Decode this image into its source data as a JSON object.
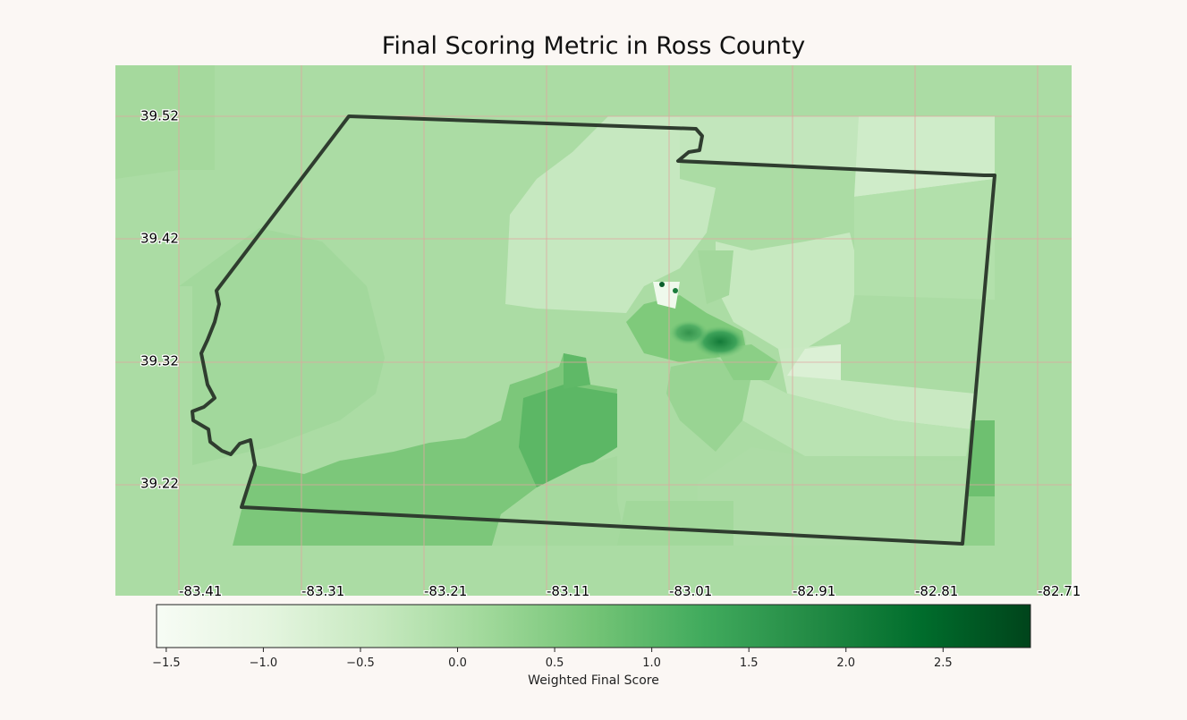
{
  "title": "Final Scoring Metric in Ross County",
  "map": {
    "lat_labels": [
      "39.52",
      "39.42",
      "39.32",
      "39.22"
    ],
    "lon_labels": [
      "-83.41",
      "-83.31",
      "-83.21",
      "-83.11",
      "-83.01",
      "-82.91",
      "-82.81",
      "-82.71"
    ],
    "gridline_color": "#e0a5a0"
  },
  "colorbar": {
    "label": "Weighted Final Score",
    "ticks": [
      "−1.5",
      "−1.0",
      "−0.5",
      "0.0",
      "0.5",
      "1.0",
      "1.5",
      "2.0",
      "2.5"
    ],
    "vmin": -1.55,
    "vmax": 2.95,
    "colormap": "Greens",
    "colors": [
      "#f7fcf5",
      "#e5f5e0",
      "#c7e9c0",
      "#a1d99b",
      "#74c476",
      "#41ab5d",
      "#238b45",
      "#006d2c",
      "#00441b"
    ]
  }
}
